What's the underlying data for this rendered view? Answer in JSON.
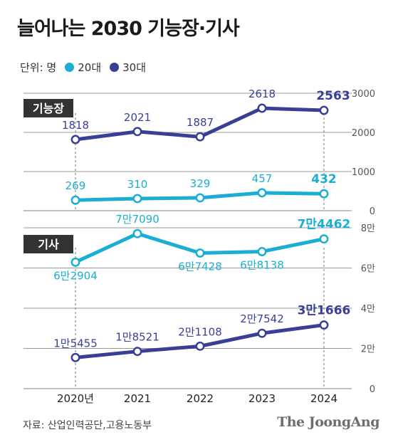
{
  "title": "늘어나는 2030 기능장·기사",
  "legend": {
    "unit_label": "단위: 명",
    "items": [
      {
        "label": "20대",
        "color": "#1aaed4"
      },
      {
        "label": "30대",
        "color": "#3a3f96"
      }
    ]
  },
  "source": "자료: 산업인력공단,고용노동부",
  "brand": "The JoongAng",
  "chart_data": [
    {
      "type": "line",
      "panel_label": "기능장",
      "categories": [
        "2020년",
        "2021",
        "2022",
        "2023",
        "2024"
      ],
      "ylim": [
        0,
        3000
      ],
      "yticks": [
        "0",
        "1000",
        "2000",
        "3000"
      ],
      "series": [
        {
          "name": "30대",
          "color": "#3a3f96",
          "values": [
            1818,
            2021,
            1887,
            2618,
            2563
          ],
          "labels": [
            "1818",
            "2021",
            "1887",
            "2618",
            "2563"
          ]
        },
        {
          "name": "20대",
          "color": "#1aaed4",
          "values": [
            269,
            310,
            329,
            457,
            432
          ],
          "labels": [
            "269",
            "310",
            "329",
            "457",
            "432"
          ]
        }
      ]
    },
    {
      "type": "line",
      "panel_label": "기사",
      "categories": [
        "2020년",
        "2021",
        "2022",
        "2023",
        "2024"
      ],
      "ylim": [
        0,
        80000
      ],
      "yticks": [
        "0",
        "2만",
        "4만",
        "6만",
        "8만"
      ],
      "series": [
        {
          "name": "20대",
          "color": "#1aaed4",
          "values": [
            62904,
            77090,
            67428,
            68138,
            74462
          ],
          "labels": [
            "6만2904",
            "7만7090",
            "6만7428",
            "6만8138",
            "7만4462"
          ]
        },
        {
          "name": "30대",
          "color": "#3a3f96",
          "values": [
            15455,
            18521,
            21108,
            27542,
            31666
          ],
          "labels": [
            "1만5455",
            "1만8521",
            "2만1108",
            "2만7542",
            "3만1666"
          ]
        }
      ]
    }
  ]
}
